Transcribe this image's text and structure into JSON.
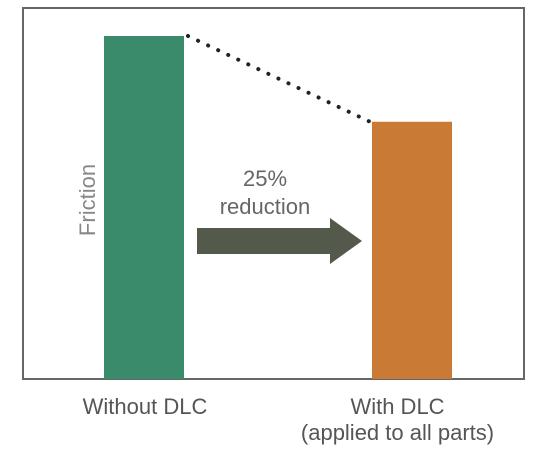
{
  "chart_data": {
    "type": "bar",
    "categories": [
      "Without DLC",
      "With DLC"
    ],
    "category_sublabels": [
      "",
      "(applied to all parts)"
    ],
    "values": [
      100,
      75
    ],
    "ylabel": "Friction",
    "ylim": [
      0,
      100
    ],
    "grid": false,
    "bar_colors": [
      "#3a8a6c",
      "#c97a35"
    ],
    "annotation": {
      "lines": [
        "25%",
        "reduction"
      ],
      "arrow_color": "#545a4b"
    },
    "connector": "dotted"
  }
}
